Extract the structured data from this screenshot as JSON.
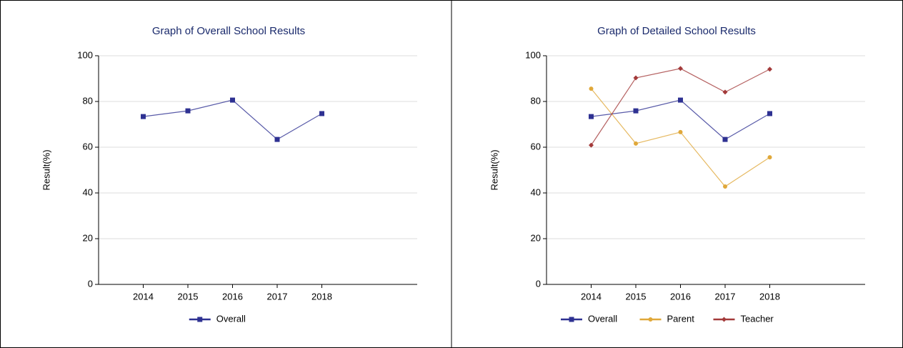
{
  "chart_data": [
    {
      "type": "line",
      "title": "Graph of Overall School Results",
      "y_label": "Result(%)",
      "categories": [
        "2014",
        "2015",
        "2016",
        "2017",
        "2018"
      ],
      "series": [
        {
          "name": "Overall",
          "color": "#2e3192",
          "marker": "square",
          "values": [
            73.4,
            75.9,
            80.6,
            63.4,
            74.7
          ]
        }
      ],
      "ylim": [
        0,
        100
      ],
      "yticks": [
        0,
        20,
        40,
        60,
        80,
        100
      ],
      "grid": true
    },
    {
      "type": "line",
      "title": "Graph of Detailed School Results",
      "y_label": "Result(%)",
      "categories": [
        "2014",
        "2015",
        "2016",
        "2017",
        "2018"
      ],
      "series": [
        {
          "name": "Overall",
          "color": "#2e3192",
          "marker": "square",
          "values": [
            73.4,
            75.9,
            80.6,
            63.4,
            74.7
          ]
        },
        {
          "name": "Parent",
          "color": "#e0a83a",
          "marker": "circle",
          "values": [
            85.6,
            61.6,
            66.6,
            42.8,
            55.6
          ]
        },
        {
          "name": "Teacher",
          "color": "#a33a3a",
          "marker": "diamond",
          "values": [
            60.9,
            90.3,
            94.4,
            84.1,
            94.1
          ]
        }
      ],
      "ylim": [
        0,
        100
      ],
      "yticks": [
        0,
        20,
        40,
        60,
        80,
        100
      ],
      "grid": true
    }
  ]
}
